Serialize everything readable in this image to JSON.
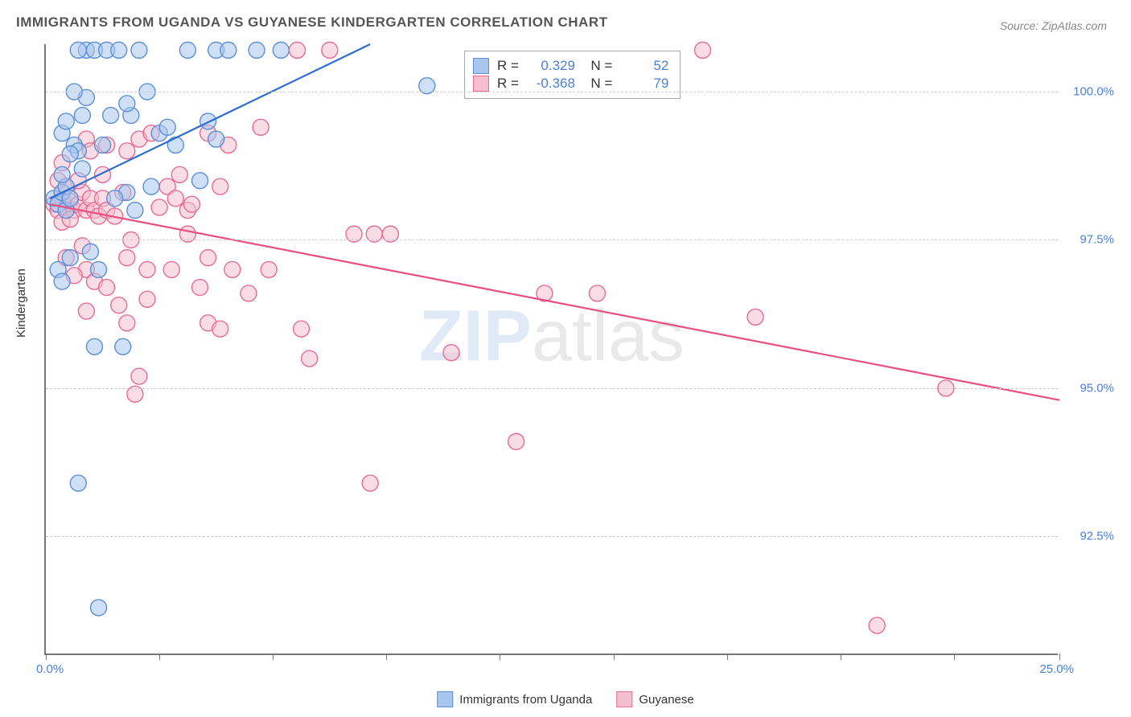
{
  "title": "IMMIGRANTS FROM UGANDA VS GUYANESE KINDERGARTEN CORRELATION CHART",
  "source": "Source: ZipAtlas.com",
  "ylabel": "Kindergarten",
  "watermark": {
    "bold": "ZIP",
    "rest": "atlas"
  },
  "chart": {
    "type": "scatter",
    "xlim": [
      0,
      25
    ],
    "ylim": [
      90.5,
      100.8
    ],
    "x_end_labels": [
      "0.0%",
      "25.0%"
    ],
    "x_tick_positions": [
      0,
      2.8,
      5.6,
      8.4,
      11.2,
      14.0,
      16.8,
      19.6,
      22.4,
      25.0
    ],
    "y_gridlines": [
      {
        "value": 100.0,
        "label": "100.0%"
      },
      {
        "value": 97.5,
        "label": "97.5%"
      },
      {
        "value": 95.0,
        "label": "95.0%"
      },
      {
        "value": 92.5,
        "label": "92.5%"
      }
    ],
    "series": [
      {
        "id": "uganda",
        "label": "Immigrants from Uganda",
        "color_fill": "#a8c5ec",
        "color_stroke": "#5b8fd8",
        "marker_radius": 10,
        "fill_opacity": 0.55,
        "R": "0.329",
        "N": "52",
        "trend": {
          "x1": 0.1,
          "y1": 98.2,
          "x2": 8.0,
          "y2": 100.8,
          "color": "#2d6dd0",
          "width": 2.2
        },
        "points": [
          [
            0.2,
            98.2
          ],
          [
            0.3,
            98.1
          ],
          [
            0.4,
            98.3
          ],
          [
            0.5,
            98.0
          ],
          [
            0.5,
            98.4
          ],
          [
            0.6,
            98.2
          ],
          [
            0.7,
            99.1
          ],
          [
            0.4,
            99.3
          ],
          [
            0.8,
            99.0
          ],
          [
            0.9,
            99.6
          ],
          [
            1.0,
            100.7
          ],
          [
            1.2,
            100.7
          ],
          [
            1.5,
            100.7
          ],
          [
            1.8,
            100.7
          ],
          [
            2.1,
            99.6
          ],
          [
            2.3,
            100.7
          ],
          [
            2.5,
            100.0
          ],
          [
            2.8,
            99.3
          ],
          [
            2.0,
            98.3
          ],
          [
            1.7,
            98.2
          ],
          [
            1.1,
            97.3
          ],
          [
            1.3,
            97.0
          ],
          [
            0.6,
            97.2
          ],
          [
            0.3,
            97.0
          ],
          [
            0.4,
            96.8
          ],
          [
            1.9,
            95.7
          ],
          [
            3.5,
            100.7
          ],
          [
            3.2,
            99.1
          ],
          [
            3.0,
            99.4
          ],
          [
            4.0,
            99.5
          ],
          [
            4.2,
            100.7
          ],
          [
            4.2,
            99.2
          ],
          [
            4.5,
            100.7
          ],
          [
            5.2,
            100.7
          ],
          [
            5.8,
            100.7
          ],
          [
            3.8,
            98.5
          ],
          [
            2.6,
            98.4
          ],
          [
            2.2,
            98.0
          ],
          [
            1.0,
            99.9
          ],
          [
            0.8,
            100.7
          ],
          [
            0.7,
            100.0
          ],
          [
            0.9,
            98.7
          ],
          [
            2.0,
            99.8
          ],
          [
            1.4,
            99.1
          ],
          [
            1.6,
            99.6
          ],
          [
            1.2,
            95.7
          ],
          [
            0.8,
            93.4
          ],
          [
            9.4,
            100.1
          ],
          [
            1.3,
            91.3
          ],
          [
            0.5,
            99.5
          ],
          [
            0.4,
            98.6
          ],
          [
            0.6,
            98.95
          ]
        ]
      },
      {
        "id": "guyanese",
        "label": "Guyanese",
        "color_fill": "#f4c0ce",
        "color_stroke": "#e76b94",
        "marker_radius": 10,
        "fill_opacity": 0.55,
        "R": "-0.368",
        "N": "79",
        "trend": {
          "x1": 0.1,
          "y1": 98.1,
          "x2": 25.0,
          "y2": 94.8,
          "color": "#e84f80",
          "width": 2.2
        },
        "points": [
          [
            0.2,
            98.1
          ],
          [
            0.3,
            98.0
          ],
          [
            0.4,
            98.2
          ],
          [
            0.5,
            98.05
          ],
          [
            0.6,
            98.15
          ],
          [
            0.7,
            98.0
          ],
          [
            0.8,
            98.1
          ],
          [
            0.9,
            98.3
          ],
          [
            1.0,
            98.0
          ],
          [
            1.1,
            98.2
          ],
          [
            1.2,
            98.0
          ],
          [
            1.3,
            97.9
          ],
          [
            1.4,
            98.2
          ],
          [
            1.5,
            98.0
          ],
          [
            1.0,
            99.2
          ],
          [
            1.5,
            99.1
          ],
          [
            2.0,
            99.0
          ],
          [
            2.3,
            99.2
          ],
          [
            2.6,
            99.3
          ],
          [
            3.0,
            98.4
          ],
          [
            3.2,
            98.2
          ],
          [
            3.5,
            97.6
          ],
          [
            3.5,
            98.0
          ],
          [
            4.0,
            99.3
          ],
          [
            4.3,
            98.4
          ],
          [
            4.5,
            99.1
          ],
          [
            5.3,
            99.4
          ],
          [
            6.2,
            100.7
          ],
          [
            7.0,
            100.7
          ],
          [
            4.0,
            97.2
          ],
          [
            4.6,
            97.0
          ],
          [
            5.0,
            96.6
          ],
          [
            5.5,
            97.0
          ],
          [
            3.8,
            96.7
          ],
          [
            2.5,
            97.0
          ],
          [
            2.0,
            97.2
          ],
          [
            1.0,
            97.0
          ],
          [
            1.2,
            96.8
          ],
          [
            1.5,
            96.7
          ],
          [
            1.8,
            96.4
          ],
          [
            2.5,
            96.5
          ],
          [
            2.0,
            96.1
          ],
          [
            4.0,
            96.1
          ],
          [
            4.3,
            96.0
          ],
          [
            6.3,
            96.0
          ],
          [
            6.5,
            95.5
          ],
          [
            7.6,
            97.6
          ],
          [
            8.1,
            97.6
          ],
          [
            8.5,
            97.6
          ],
          [
            8.0,
            93.4
          ],
          [
            10.0,
            95.6
          ],
          [
            12.3,
            96.6
          ],
          [
            13.6,
            96.6
          ],
          [
            11.6,
            94.1
          ],
          [
            16.2,
            100.7
          ],
          [
            17.5,
            96.2
          ],
          [
            20.5,
            91.0
          ],
          [
            22.2,
            95.0
          ],
          [
            2.3,
            95.2
          ],
          [
            2.2,
            94.9
          ],
          [
            1.0,
            96.3
          ],
          [
            0.7,
            96.9
          ],
          [
            0.8,
            98.5
          ],
          [
            0.5,
            98.4
          ],
          [
            0.4,
            97.8
          ],
          [
            0.6,
            97.85
          ],
          [
            1.7,
            97.9
          ],
          [
            1.9,
            98.3
          ],
          [
            2.1,
            97.5
          ],
          [
            2.8,
            98.05
          ],
          [
            3.1,
            97.0
          ],
          [
            3.3,
            98.6
          ],
          [
            3.6,
            98.1
          ],
          [
            1.1,
            99.0
          ],
          [
            1.4,
            98.6
          ],
          [
            0.9,
            97.4
          ],
          [
            0.5,
            97.2
          ],
          [
            0.3,
            98.5
          ],
          [
            0.4,
            98.8
          ]
        ]
      }
    ]
  }
}
